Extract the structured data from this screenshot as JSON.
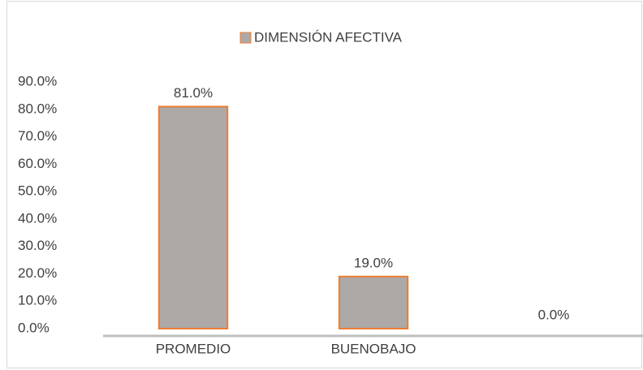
{
  "chart_data": {
    "type": "bar",
    "legend": "DIMENSIÓN AFECTIVA",
    "categories": [
      "PROMEDIO",
      "BUENOBAJO",
      null
    ],
    "values": [
      81,
      19,
      0
    ],
    "value_labels": [
      "81.0%",
      "19.0%",
      "0.0%"
    ],
    "color": "#ada9a7",
    "edge_color": "#ed7d31",
    "ylim": [
      0,
      90
    ],
    "yticks": [
      {
        "value": 0,
        "label": "0.0%"
      },
      {
        "value": 10,
        "label": "10.0%"
      },
      {
        "value": 20,
        "label": "20.0%"
      },
      {
        "value": 30,
        "label": "30.0%"
      },
      {
        "value": 40,
        "label": "40.0%"
      },
      {
        "value": 50,
        "label": "50.0%"
      },
      {
        "value": 60,
        "label": "60.0%"
      },
      {
        "value": 70,
        "label": "70.0%"
      },
      {
        "value": 80,
        "label": "80.0%"
      },
      {
        "value": 90,
        "label": "90.0%"
      }
    ],
    "grid": false,
    "legend_position": "top"
  }
}
